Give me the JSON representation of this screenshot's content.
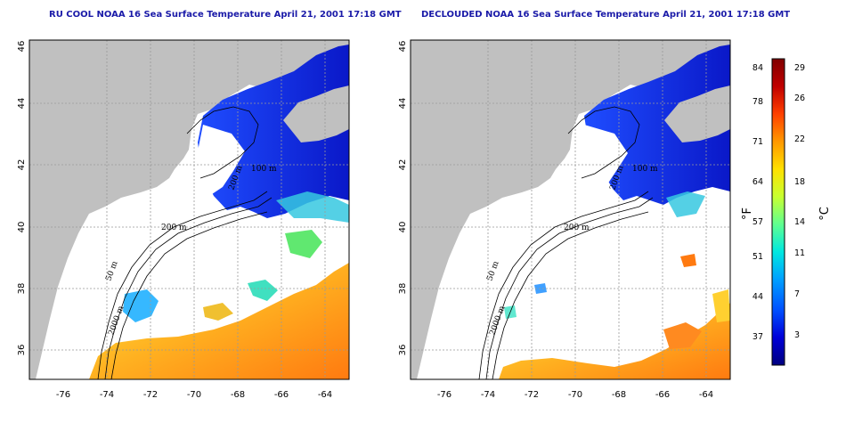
{
  "panels": [
    {
      "id": "left",
      "title": "RU COOL NOAA 16 Sea Surface Temperature April 21, 2001 17:18 GMT",
      "contour_labels": [
        "200 m",
        "2000 m",
        "50 m",
        "100 m",
        "200 m"
      ]
    },
    {
      "id": "right",
      "title": "DECLOUDED NOAA 16 Sea Surface Temperature April 21, 2001 17:18 GMT",
      "contour_labels": [
        "200 m",
        "2000 m",
        "50 m",
        "100 m",
        "200 m"
      ]
    }
  ],
  "axes": {
    "lon_ticks": [
      "-76",
      "-74",
      "-72",
      "-70",
      "-68",
      "-66",
      "-64"
    ],
    "lat_ticks": [
      "46",
      "44",
      "42",
      "40",
      "38",
      "36"
    ],
    "lon_range": [
      -77,
      -63
    ],
    "lat_range": [
      35,
      46
    ]
  },
  "colorbar": {
    "fahrenheit_ticks": [
      "84",
      "78",
      "71",
      "64",
      "57",
      "51",
      "44",
      "37"
    ],
    "celsius_ticks": [
      "29",
      "26",
      "22",
      "18",
      "14",
      "11",
      "7",
      "3"
    ],
    "fahrenheit_unit": "°F",
    "celsius_unit": "°C",
    "colors": [
      "#000080",
      "#0000d8",
      "#0050ff",
      "#00a0ff",
      "#00e8e0",
      "#60ff90",
      "#c8ff30",
      "#ffe000",
      "#ff9800",
      "#ff4000",
      "#c00000",
      "#800000"
    ]
  },
  "colors": {
    "land": "#c0c0c0",
    "ocean_cloud": "#ffffff",
    "cold_water": "#1530e0",
    "grid": "#999999"
  }
}
